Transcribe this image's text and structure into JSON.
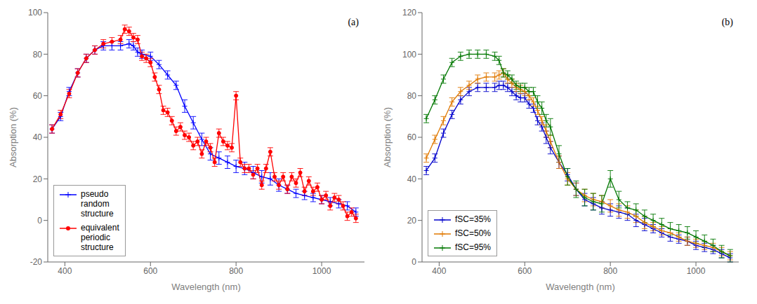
{
  "chart_data": [
    {
      "type": "line",
      "xlabel": "Wavelength (nm)",
      "ylabel": "Absorption (%)",
      "annotation": "(a)",
      "legend": "lower left",
      "grid": false,
      "xlim": [
        360,
        1100
      ],
      "xticks": [
        400,
        600,
        800,
        1000
      ],
      "ylim": [
        -20,
        100
      ],
      "yticks": [
        -20,
        0,
        20,
        40,
        60,
        80,
        100
      ],
      "series": [
        {
          "name": "pseudo\nrandom\nstructure",
          "color": "#0000ff",
          "marker": "plus",
          "x": [
            370,
            390,
            410,
            430,
            450,
            470,
            490,
            510,
            530,
            550,
            560,
            570,
            580,
            600,
            620,
            640,
            660,
            680,
            700,
            720,
            740,
            760,
            780,
            800,
            820,
            840,
            860,
            880,
            900,
            920,
            940,
            960,
            980,
            1000,
            1020,
            1040,
            1060,
            1080
          ],
          "values": [
            44,
            50,
            62,
            71,
            78,
            82,
            84,
            84,
            84,
            85,
            84,
            81,
            80,
            79,
            75,
            70,
            65,
            55,
            47,
            39,
            32,
            30,
            28,
            26,
            25,
            23,
            21,
            20,
            17,
            15,
            13,
            12,
            11,
            10,
            9,
            8,
            7,
            4
          ],
          "errors": [
            2,
            2,
            2,
            2,
            2,
            2,
            2,
            2,
            2,
            2,
            2,
            2,
            2,
            2,
            2,
            2,
            2,
            3,
            3,
            3,
            3,
            3,
            3,
            3,
            3,
            3,
            3,
            3,
            3,
            2,
            2,
            2,
            2,
            2,
            2,
            2,
            2,
            2
          ]
        },
        {
          "name": "equivalent\nperiodic\nstructure",
          "color": "#ff0000",
          "marker": "circle",
          "x": [
            370,
            390,
            410,
            430,
            450,
            470,
            490,
            510,
            530,
            540,
            550,
            560,
            570,
            580,
            590,
            600,
            610,
            620,
            630,
            640,
            650,
            660,
            670,
            680,
            690,
            700,
            710,
            720,
            730,
            740,
            750,
            760,
            770,
            780,
            790,
            800,
            810,
            820,
            830,
            840,
            850,
            860,
            870,
            880,
            890,
            900,
            910,
            920,
            930,
            940,
            950,
            960,
            970,
            980,
            990,
            1000,
            1010,
            1020,
            1030,
            1040,
            1050,
            1060,
            1070,
            1080
          ],
          "values": [
            44,
            51,
            61,
            71,
            78,
            82,
            85,
            86,
            87,
            92,
            91,
            88,
            87,
            79,
            78,
            76,
            69,
            63,
            53,
            52,
            48,
            43,
            45,
            41,
            40,
            36,
            38,
            32,
            38,
            35,
            28,
            42,
            38,
            36,
            35,
            60,
            28,
            25,
            25,
            22,
            25,
            17,
            25,
            33,
            21,
            17,
            21,
            15,
            21,
            18,
            23,
            14,
            19,
            14,
            16,
            10,
            12,
            7,
            11,
            10,
            7,
            2,
            4,
            1
          ],
          "errors": [
            2,
            2,
            2,
            2,
            2,
            2,
            2,
            2,
            2,
            2,
            2,
            2,
            2,
            2,
            2,
            2,
            2,
            2,
            2,
            2,
            2,
            2,
            2,
            2,
            2,
            2,
            2,
            2,
            2,
            2,
            2,
            2,
            2,
            2,
            2,
            2,
            2,
            2,
            2,
            2,
            2,
            2,
            2,
            2,
            2,
            2,
            2,
            2,
            2,
            2,
            2,
            2,
            2,
            2,
            2,
            2,
            2,
            2,
            2,
            2,
            2,
            2,
            2,
            2
          ]
        }
      ]
    },
    {
      "type": "line",
      "xlabel": "Wavelength (nm)",
      "ylabel": "Absorption (%)",
      "annotation": "(b)",
      "legend": "lower left",
      "grid": false,
      "xlim": [
        360,
        1100
      ],
      "xticks": [
        400,
        600,
        800,
        1000
      ],
      "ylim": [
        0,
        120
      ],
      "yticks": [
        0,
        20,
        40,
        60,
        80,
        100,
        120
      ],
      "x": [
        370,
        390,
        410,
        430,
        450,
        470,
        490,
        510,
        530,
        540,
        550,
        560,
        570,
        580,
        590,
        600,
        610,
        620,
        630,
        640,
        650,
        660,
        680,
        700,
        720,
        740,
        760,
        780,
        800,
        820,
        840,
        860,
        880,
        900,
        920,
        940,
        960,
        980,
        1000,
        1020,
        1040,
        1060,
        1080
      ],
      "series": [
        {
          "name": "fSC=35%",
          "color": "#0000cc",
          "marker": "plus",
          "values": [
            44,
            50,
            62,
            71,
            78,
            82,
            84,
            84,
            84,
            85,
            85,
            84,
            82,
            80,
            79,
            79,
            76,
            74,
            68,
            65,
            60,
            55,
            48,
            42,
            35,
            30,
            28,
            26,
            25,
            24,
            23,
            20,
            18,
            16,
            14,
            12,
            11,
            10,
            8,
            7,
            6,
            4,
            2
          ],
          "errors": [
            2,
            2,
            2,
            2,
            2,
            2,
            2,
            2,
            2,
            2,
            2,
            2,
            2,
            2,
            2,
            2,
            2,
            2,
            2,
            2,
            3,
            3,
            3,
            3,
            3,
            3,
            3,
            3,
            3,
            3,
            3,
            3,
            3,
            2,
            2,
            2,
            2,
            2,
            2,
            2,
            2,
            2,
            2
          ]
        },
        {
          "name": "fSC=50%",
          "color": "#e07800",
          "marker": "plus",
          "values": [
            50,
            59,
            68,
            77,
            82,
            85,
            88,
            89,
            89,
            90,
            91,
            88,
            86,
            84,
            83,
            82,
            80,
            77,
            73,
            68,
            63,
            58,
            48,
            40,
            35,
            32,
            30,
            29,
            27,
            25,
            24,
            22,
            19,
            17,
            15,
            14,
            12,
            10,
            9,
            8,
            7,
            5,
            3
          ],
          "errors": [
            2,
            2,
            2,
            2,
            2,
            2,
            2,
            2,
            2,
            2,
            2,
            2,
            2,
            2,
            2,
            2,
            2,
            2,
            2,
            2,
            3,
            3,
            3,
            3,
            3,
            3,
            3,
            3,
            3,
            3,
            3,
            3,
            3,
            2,
            2,
            2,
            2,
            2,
            2,
            2,
            2,
            2,
            2
          ]
        },
        {
          "name": "fSC=95%",
          "color": "#007700",
          "marker": "plus",
          "values": [
            69,
            78,
            88,
            96,
            99,
            100,
            100,
            100,
            99,
            97,
            91,
            90,
            88,
            85,
            84,
            84,
            82,
            82,
            77,
            74,
            68,
            65,
            52,
            41,
            35,
            31,
            29,
            28,
            40,
            30,
            26,
            25,
            22,
            20,
            18,
            16,
            15,
            14,
            12,
            10,
            8,
            5,
            3
          ],
          "errors": [
            2,
            2,
            2,
            2,
            2,
            2,
            2,
            2,
            2,
            2,
            2,
            2,
            2,
            2,
            2,
            2,
            2,
            2,
            3,
            3,
            3,
            4,
            4,
            4,
            4,
            4,
            4,
            4,
            4,
            4,
            3,
            3,
            3,
            3,
            3,
            3,
            3,
            3,
            3,
            3,
            3,
            3,
            3
          ]
        }
      ]
    }
  ]
}
